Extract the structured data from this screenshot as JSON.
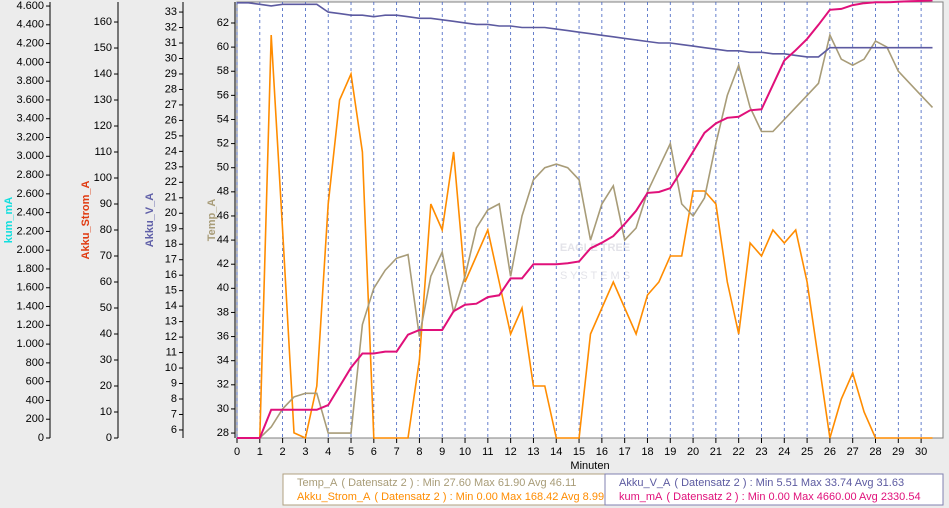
{
  "chart_data": {
    "type": "line",
    "x_label": "Minuten",
    "watermark": [
      "EAGLE TREE",
      "S Y S T E M S"
    ],
    "xlim": [
      0,
      30.96
    ],
    "xticks": [
      0,
      1,
      2,
      3,
      4,
      5,
      6,
      7,
      8,
      9,
      10,
      11,
      12,
      13,
      14,
      15,
      16,
      17,
      18,
      19,
      20,
      21,
      22,
      23,
      24,
      25,
      26,
      27,
      28,
      29,
      30
    ],
    "grid": true,
    "x": [
      0,
      0.5,
      1,
      1.5,
      2,
      2.5,
      3,
      3.5,
      4,
      4.5,
      5,
      5.5,
      6,
      6.5,
      7,
      7.5,
      8,
      8.5,
      9,
      9.5,
      10,
      10.5,
      11,
      11.5,
      12,
      12.5,
      13,
      13.5,
      14,
      14.5,
      15,
      15.5,
      16,
      16.5,
      17,
      17.5,
      18,
      18.5,
      19,
      19.5,
      20,
      20.5,
      21,
      21.5,
      22,
      22.5,
      23,
      23.5,
      24,
      24.5,
      25,
      25.5,
      26,
      26.5,
      27,
      27.5,
      28,
      28.5,
      29,
      29.5,
      30,
      30.5
    ],
    "series": [
      {
        "name": "kum_mA",
        "color": "#e0107a",
        "axis_color": "#10dede",
        "legend": "( Datensatz 2 ) : Min 0.00   Max 4660.00   Avg 2330.54",
        "ylim": [
          0,
          4643
        ],
        "yticks": [
          0,
          200,
          400,
          600,
          800,
          {
            "value": 1000,
            "label": "1.000"
          },
          {
            "value": 1200,
            "label": "1.200"
          },
          {
            "value": 1400,
            "label": "1.400"
          },
          {
            "value": 1600,
            "label": "1.600"
          },
          {
            "value": 1800,
            "label": "1.800"
          },
          {
            "value": 2000,
            "label": "2.000"
          },
          {
            "value": 2200,
            "label": "2.200"
          },
          {
            "value": 2400,
            "label": "2.400"
          },
          {
            "value": 2600,
            "label": "2.600"
          },
          {
            "value": 2800,
            "label": "2.800"
          },
          {
            "value": 3000,
            "label": "3.000"
          },
          {
            "value": 3200,
            "label": "3.200"
          },
          {
            "value": 3400,
            "label": "3.400"
          },
          {
            "value": 3600,
            "label": "3.600"
          },
          {
            "value": 3800,
            "label": "3.800"
          },
          {
            "value": 4000,
            "label": "4.000"
          },
          {
            "value": 4200,
            "label": "4.200"
          },
          {
            "value": 4400,
            "label": "4.400"
          },
          {
            "value": 4600,
            "label": "4.600"
          }
        ],
        "values": [
          0,
          0,
          0,
          300,
          300,
          300,
          300,
          300,
          350,
          550,
          750,
          900,
          900,
          920,
          920,
          1100,
          1150,
          1150,
          1150,
          1350,
          1420,
          1430,
          1500,
          1520,
          1700,
          1700,
          1850,
          1850,
          1850,
          1860,
          1880,
          2020,
          2080,
          2150,
          2280,
          2420,
          2610,
          2620,
          2660,
          2850,
          3050,
          3250,
          3350,
          3410,
          3420,
          3490,
          3500,
          3760,
          4020,
          4130,
          4250,
          4400,
          4560,
          4570,
          4610,
          4630,
          4640,
          4640,
          4645,
          4650,
          4655,
          4660
        ]
      },
      {
        "name": "Akku_Strom_A",
        "color": "#ff8c00",
        "axis_color": "#e03a10",
        "legend": "( Datensatz 2 ) : Min 0.00   Max 168.42   Avg 8.99",
        "ylim": [
          0,
          167.7
        ],
        "yticks": [
          0,
          10,
          20,
          30,
          40,
          50,
          60,
          70,
          80,
          90,
          100,
          110,
          120,
          130,
          140,
          150,
          160
        ],
        "values": [
          0,
          0,
          0,
          155,
          80,
          2,
          0,
          20,
          90,
          130,
          140,
          110,
          0,
          0,
          0,
          0,
          30,
          90,
          80,
          110,
          60,
          70,
          80,
          60,
          40,
          50,
          20,
          20,
          0,
          0,
          0,
          40,
          50,
          60,
          50,
          40,
          55,
          60,
          70,
          70,
          95,
          95,
          90,
          60,
          40,
          75,
          70,
          80,
          75,
          80,
          60,
          30,
          0,
          15,
          25,
          10,
          0,
          0,
          0,
          0,
          0,
          0
        ]
      },
      {
        "name": "Akku_V_A",
        "color": "#5c5aa0",
        "axis_color": "#6060a8",
        "legend": "( Datensatz 2 ) : Min 5.51   Max 33.74   Avg 31.63",
        "ylim": [
          5.48,
          33.65
        ],
        "yticks": [
          6,
          7,
          8,
          9,
          10,
          11,
          12,
          13,
          14,
          15,
          16,
          17,
          18,
          19,
          20,
          21,
          22,
          23,
          24,
          25,
          26,
          27,
          28,
          29,
          30,
          31,
          32,
          33
        ],
        "values": [
          33.6,
          33.6,
          33.5,
          33.4,
          33.5,
          33.5,
          33.5,
          33.5,
          33.0,
          32.9,
          32.8,
          32.8,
          32.7,
          32.8,
          32.8,
          32.7,
          32.6,
          32.6,
          32.5,
          32.4,
          32.3,
          32.2,
          32.2,
          32.1,
          32.1,
          32.0,
          32.0,
          32.0,
          31.9,
          31.8,
          31.7,
          31.6,
          31.5,
          31.4,
          31.3,
          31.2,
          31.1,
          31.0,
          31.0,
          30.9,
          30.8,
          30.7,
          30.6,
          30.5,
          30.5,
          30.4,
          30.4,
          30.3,
          30.3,
          30.2,
          30.1,
          30.1,
          30.7,
          30.7,
          30.7,
          30.7,
          30.7,
          30.7,
          30.7,
          30.7,
          30.7,
          30.7
        ]
      },
      {
        "name": "Temp_A",
        "color": "#a89c78",
        "axis_color": "#a89c78",
        "legend": "( Datensatz 2 ) : Min 27.60   Max 61.90   Avg 46.11",
        "ylim": [
          27.59,
          63.74
        ],
        "yticks": [
          28,
          30,
          32,
          34,
          36,
          38,
          40,
          42,
          44,
          46,
          48,
          50,
          52,
          54,
          56,
          58,
          60,
          62
        ],
        "values": [
          27.6,
          27.6,
          27.6,
          28.5,
          30,
          31,
          31.3,
          31.3,
          28,
          28,
          28,
          37,
          40,
          41.5,
          42.5,
          42.8,
          36,
          41,
          43,
          38,
          41,
          45,
          46.5,
          47,
          41,
          46,
          49,
          50,
          50.3,
          50,
          49,
          44,
          47,
          48.5,
          44,
          45,
          48,
          50,
          52,
          47,
          46,
          47.5,
          52,
          56,
          58.5,
          55,
          53,
          53,
          54,
          55,
          56,
          57,
          61,
          59,
          58.5,
          59,
          60.5,
          60,
          58,
          57,
          56,
          55
        ]
      }
    ]
  }
}
